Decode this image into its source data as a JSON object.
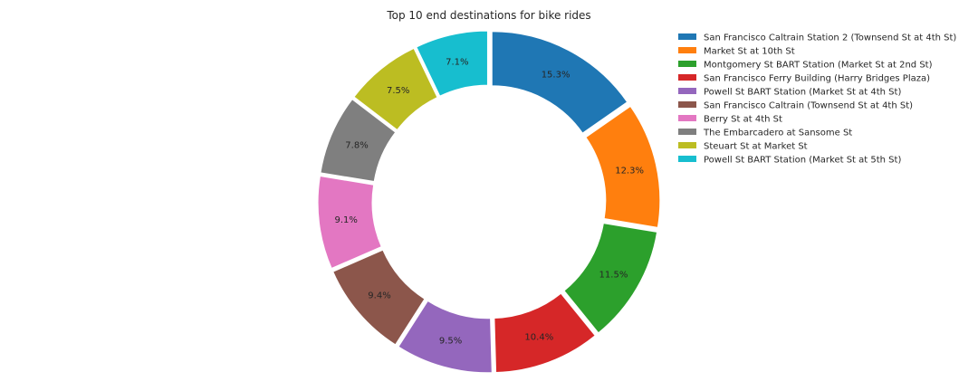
{
  "chart_data": {
    "type": "pie",
    "style": "donut",
    "title": "Top 10 end destinations for bike rides",
    "legend_position": "top-right",
    "slices": [
      {
        "label": "San Francisco Caltrain Station 2  (Townsend St at 4th St)",
        "value": 15.3,
        "pct_label": "15.3%",
        "color": "#1f77b4"
      },
      {
        "label": "Market St at 10th St",
        "value": 12.3,
        "pct_label": "12.3%",
        "color": "#ff7f0e"
      },
      {
        "label": "Montgomery St BART Station (Market St at 2nd St)",
        "value": 11.5,
        "pct_label": "11.5%",
        "color": "#2ca02c"
      },
      {
        "label": "San Francisco Ferry Building (Harry Bridges Plaza)",
        "value": 10.4,
        "pct_label": "10.4%",
        "color": "#d62728"
      },
      {
        "label": "Powell St BART Station (Market St at 4th St)",
        "value": 9.5,
        "pct_label": "9.5%",
        "color": "#9467bd"
      },
      {
        "label": "San Francisco Caltrain (Townsend St at 4th St)",
        "value": 9.4,
        "pct_label": "9.4%",
        "color": "#8c564b"
      },
      {
        "label": "Berry St at 4th St",
        "value": 9.1,
        "pct_label": "9.1%",
        "color": "#e377c2"
      },
      {
        "label": "The Embarcadero at Sansome St",
        "value": 7.8,
        "pct_label": "7.8%",
        "color": "#7f7f7f"
      },
      {
        "label": "Steuart St at Market St",
        "value": 7.5,
        "pct_label": "7.5%",
        "color": "#bcbd22"
      },
      {
        "label": "Powell St BART Station (Market St at 5th St)",
        "value": 7.1,
        "pct_label": "7.1%",
        "color": "#17becf"
      }
    ]
  }
}
